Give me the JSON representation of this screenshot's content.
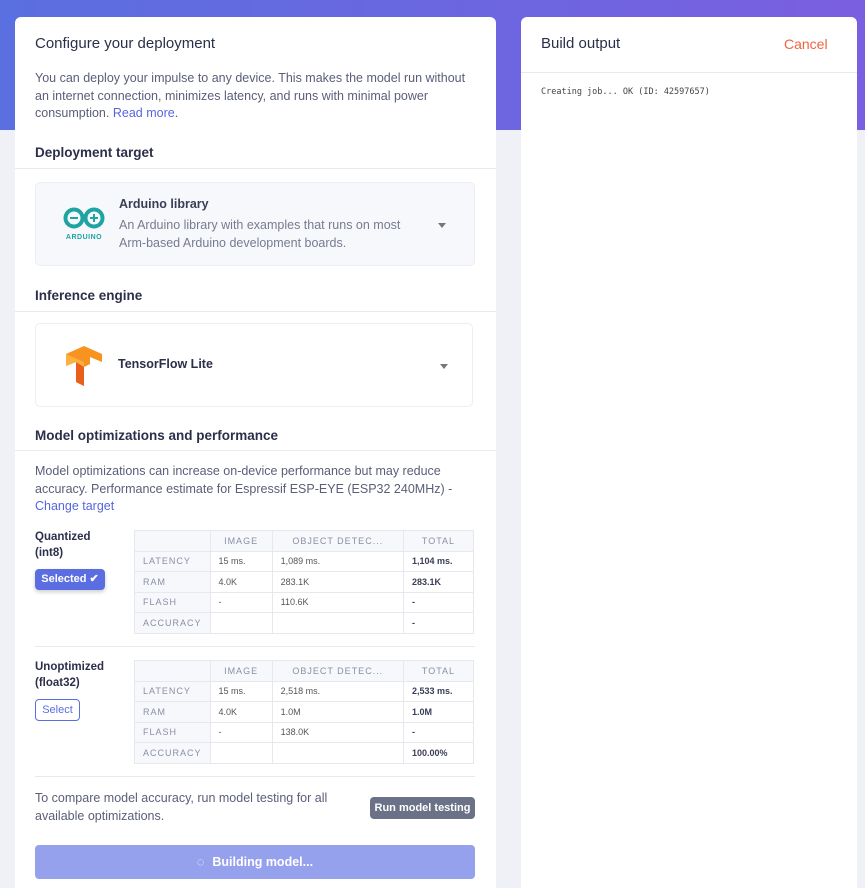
{
  "left": {
    "title": "Configure your deployment",
    "intro": "You can deploy your impulse to any device. This makes the model run without an internet connection, minimizes latency, and runs with minimal power consumption.",
    "read_more": "Read more",
    "deployment_target": {
      "header": "Deployment target",
      "name": "Arduino library",
      "description": "An Arduino library with examples that runs on most Arm-based Arduino development boards.",
      "logo_text": "ARDUINO"
    },
    "inference_engine": {
      "header": "Inference engine",
      "name": "TensorFlow Lite"
    },
    "optimizations": {
      "header": "Model optimizations and performance",
      "description": "Model optimizations can increase on-device performance but may reduce accuracy. Performance estimate for Espressif ESP-EYE (ESP32 240MHz) - ",
      "change_target": "Change target",
      "columns": [
        "",
        "IMAGE",
        "OBJECT DETEC...",
        "TOTAL"
      ],
      "models": [
        {
          "name": "Quantized",
          "type": "(int8)",
          "button": "Selected",
          "selected": true,
          "rows": [
            [
              "LATENCY",
              "15 ms.",
              "1,089 ms.",
              "1,104 ms."
            ],
            [
              "RAM",
              "4.0K",
              "283.1K",
              "283.1K"
            ],
            [
              "FLASH",
              "-",
              "110.6K",
              "-"
            ],
            [
              "ACCURACY",
              "",
              "",
              "-"
            ]
          ]
        },
        {
          "name": "Unoptimized",
          "type": "(float32)",
          "button": "Select",
          "selected": false,
          "rows": [
            [
              "LATENCY",
              "15 ms.",
              "2,518 ms.",
              "2,533 ms."
            ],
            [
              "RAM",
              "4.0K",
              "1.0M",
              "1.0M"
            ],
            [
              "FLASH",
              "-",
              "138.0K",
              "-"
            ],
            [
              "ACCURACY",
              "",
              "",
              "100.00%"
            ]
          ]
        }
      ],
      "compare_text": "To compare model accuracy, run model testing for all available optimizations.",
      "run_testing": "Run model testing"
    },
    "build_button": "Building model..."
  },
  "right": {
    "title": "Build output",
    "cancel": "Cancel",
    "log": "Creating job... OK (ID: 42597657)"
  },
  "colors": {
    "accent": "#5b6ee1",
    "cancel": "#f0643c",
    "build_button": "#95a1ec",
    "run_testing": "#6b7287"
  }
}
